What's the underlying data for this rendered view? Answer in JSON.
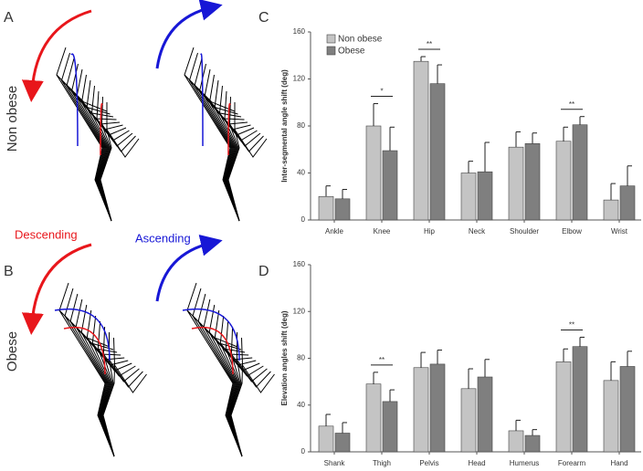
{
  "figure": {
    "panels": [
      "A",
      "B",
      "C",
      "D"
    ],
    "rows": [
      "Non obese",
      "Obese"
    ],
    "directions": [
      "Descending",
      "Ascending"
    ]
  },
  "chart_data": [
    {
      "type": "bar",
      "ylabel": "Inter-segmental angle shift (deg)",
      "categories": [
        "Ankle",
        "Knee",
        "Hip",
        "Neck",
        "Shoulder",
        "Elbow",
        "Wrist"
      ],
      "ylim": [
        0,
        160
      ],
      "yticks": [
        0,
        40,
        80,
        120,
        160
      ],
      "legend": "upper left",
      "series": [
        {
          "name": "Non obese",
          "color": "#c4c4c4",
          "values": [
            20,
            80,
            135,
            40,
            62,
            67,
            17
          ],
          "errors": [
            9,
            19,
            4,
            10,
            13,
            12,
            14
          ]
        },
        {
          "name": "Obese",
          "color": "#7f7f7f",
          "values": [
            18,
            59,
            116,
            41,
            65,
            81,
            29
          ],
          "errors": [
            8,
            20,
            16,
            25,
            9,
            7,
            17
          ]
        }
      ],
      "significance": [
        null,
        "*",
        "**",
        null,
        null,
        "**",
        null
      ]
    },
    {
      "type": "bar",
      "ylabel": "Elevation angles shift (deg)",
      "categories": [
        "Shank",
        "Thigh",
        "Pelvis",
        "Head",
        "Humerus",
        "Forearm",
        "Hand"
      ],
      "ylim": [
        0,
        160
      ],
      "yticks": [
        0,
        40,
        80,
        120,
        160
      ],
      "series": [
        {
          "name": "Non obese",
          "color": "#c4c4c4",
          "values": [
            22,
            58,
            72,
            54,
            18,
            77,
            61
          ],
          "errors": [
            10,
            10,
            13,
            17,
            9,
            11,
            16
          ]
        },
        {
          "name": "Obese",
          "color": "#7f7f7f",
          "values": [
            16,
            43,
            75,
            64,
            14,
            90,
            73
          ],
          "errors": [
            9,
            10,
            12,
            15,
            5,
            8,
            13
          ]
        }
      ],
      "significance": [
        null,
        "**",
        null,
        null,
        null,
        "**",
        null
      ]
    }
  ]
}
